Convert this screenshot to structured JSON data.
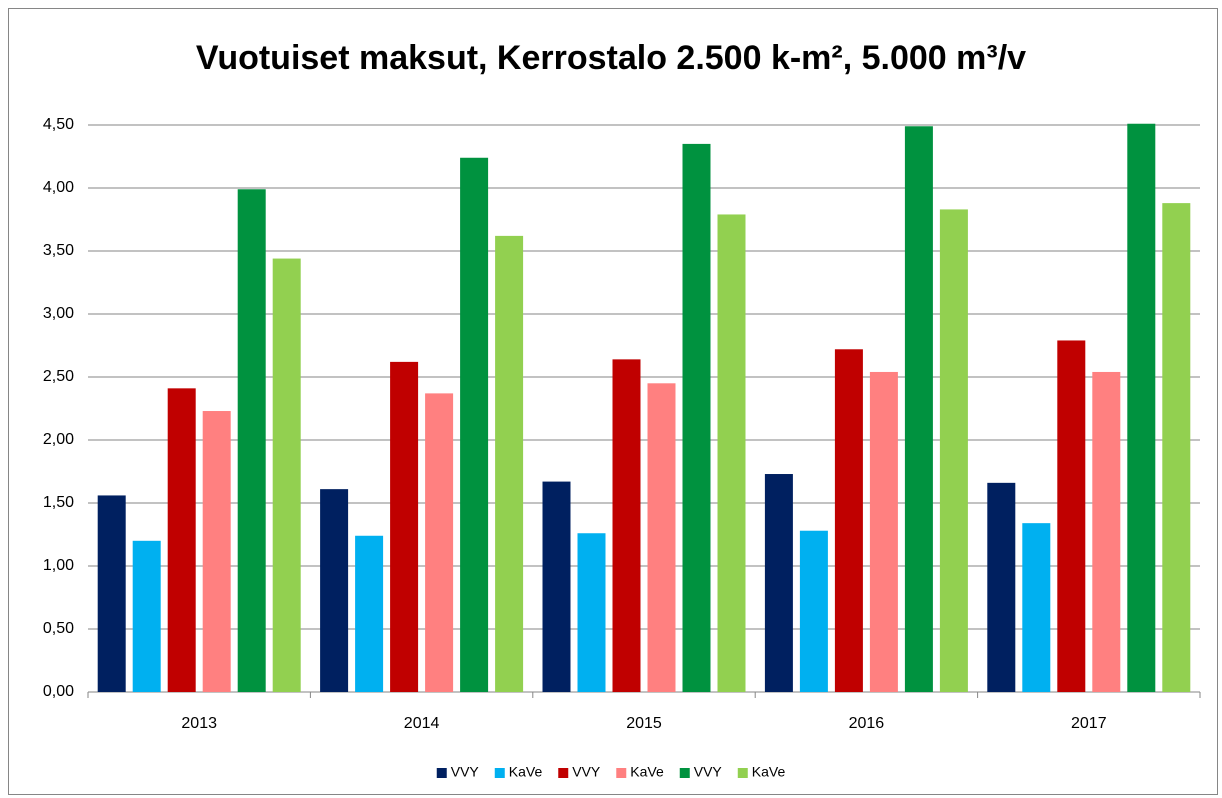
{
  "chart_data": {
    "type": "bar",
    "title": "Vuotuiset maksut, Kerrostalo 2.500 k-m², 5.000 m³/v",
    "categories": [
      "2013",
      "2014",
      "2015",
      "2016",
      "2017"
    ],
    "series": [
      {
        "name": "VVY",
        "color": "#002060",
        "values": [
          1.56,
          1.61,
          1.67,
          1.73,
          1.66
        ]
      },
      {
        "name": "KaVe",
        "color": "#00b0f0",
        "values": [
          1.2,
          1.24,
          1.26,
          1.28,
          1.34
        ]
      },
      {
        "name": "VVY",
        "color": "#c00000",
        "values": [
          2.41,
          2.62,
          2.64,
          2.72,
          2.79
        ]
      },
      {
        "name": "KaVe",
        "color": "#ff8080",
        "values": [
          2.23,
          2.37,
          2.45,
          2.54,
          2.54
        ]
      },
      {
        "name": "VVY",
        "color": "#00923f",
        "values": [
          3.99,
          4.24,
          4.35,
          4.49,
          4.51
        ]
      },
      {
        "name": "KaVe",
        "color": "#92d050",
        "values": [
          3.44,
          3.62,
          3.79,
          3.83,
          3.88
        ]
      }
    ],
    "ylim": [
      0,
      4.5
    ],
    "yticks": [
      {
        "value": 0,
        "label": "0,00"
      },
      {
        "value": 0.5,
        "label": "0,50"
      },
      {
        "value": 1,
        "label": "1,00"
      },
      {
        "value": 1.5,
        "label": "1,50"
      },
      {
        "value": 2,
        "label": "2,00"
      },
      {
        "value": 2.5,
        "label": "2,50"
      },
      {
        "value": 3,
        "label": "3,00"
      },
      {
        "value": 3.5,
        "label": "3,50"
      },
      {
        "value": 4,
        "label": "4,00"
      },
      {
        "value": 4.5,
        "label": "4,50"
      }
    ],
    "grid": true,
    "legend": "bottom"
  }
}
